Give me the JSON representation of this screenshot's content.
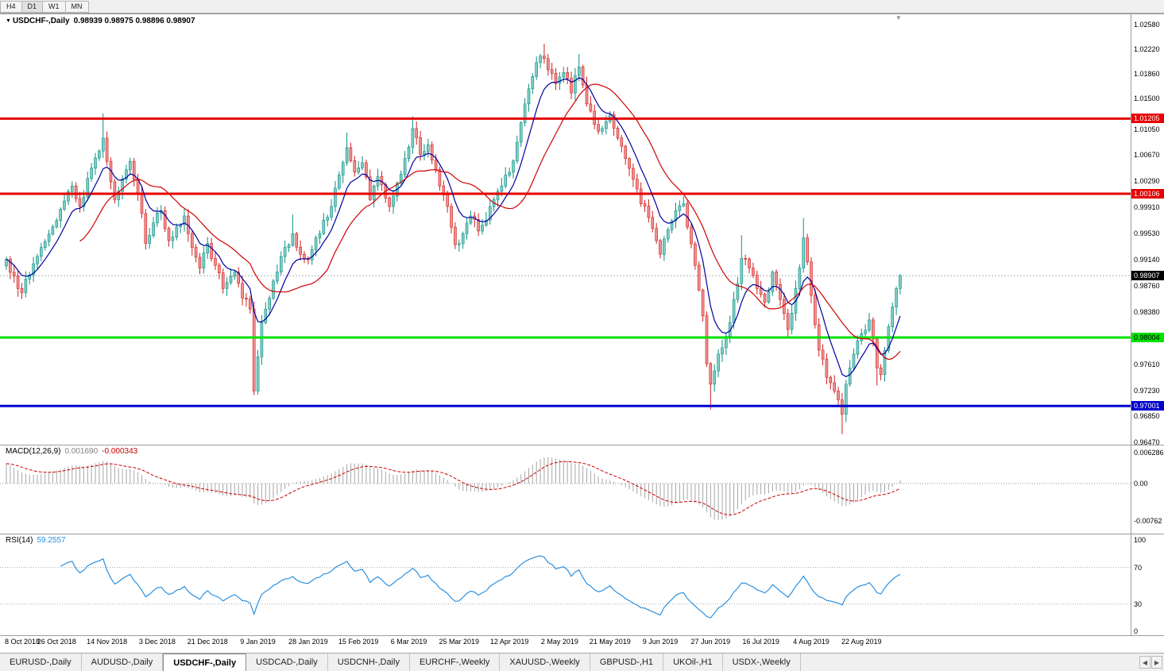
{
  "toolbar": {
    "timeframes": [
      "H4",
      "D1",
      "W1",
      "MN"
    ],
    "active": "D1"
  },
  "chart_header": {
    "collapse_icon": "▼",
    "symbol": "USDCHF-,Daily",
    "ohlc": "0.98939 0.98975 0.98896 0.98907"
  },
  "indicators": {
    "macd": {
      "title": "MACD(12,26,9)",
      "value_main": "0.001690",
      "value_signal": "-0.000343",
      "scale_labels": [
        "0.006286",
        "0.00",
        "-0.00762"
      ]
    },
    "rsi": {
      "title": "RSI(14)",
      "value": "59.2557",
      "scale_labels": [
        "100",
        "70",
        "30",
        "0"
      ]
    }
  },
  "price_axis": {
    "ticks": [
      "1.02580",
      "1.02220",
      "1.01860",
      "1.01500",
      "1.01050",
      "1.00670",
      "1.00290",
      "0.99910",
      "0.99530",
      "0.99140",
      "0.98760",
      "0.98380",
      "0.97610",
      "0.97230",
      "0.96850",
      "0.96470"
    ],
    "current_price": {
      "text": "0.98907",
      "bg": "#000000",
      "fg": "#ffffff"
    }
  },
  "levels": [
    {
      "price": "1.01205",
      "color": "#e60000",
      "badge_fg": "#ffffff"
    },
    {
      "price": "1.00106",
      "color": "#e60000",
      "badge_fg": "#ffffff"
    },
    {
      "price": "0.98004",
      "color": "#00e100",
      "badge_fg": "#000000"
    },
    {
      "price": "0.97001",
      "color": "#0000cd",
      "badge_fg": "#ffffff"
    }
  ],
  "date_axis": [
    "8 Oct 2018",
    "26 Oct 2018",
    "14 Nov 2018",
    "3 Dec 2018",
    "21 Dec 2018",
    "9 Jan 2019",
    "28 Jan 2019",
    "15 Feb 2019",
    "6 Mar 2019",
    "25 Mar 2019",
    "12 Apr 2019",
    "2 May 2019",
    "21 May 2019",
    "9 Jun 2019",
    "27 Jun 2019",
    "16 Jul 2019",
    "4 Aug 2019",
    "22 Aug 2019"
  ],
  "tabs": [
    {
      "label": "EURUSD-,Daily",
      "active": false
    },
    {
      "label": "AUDUSD-,Daily",
      "active": false
    },
    {
      "label": "USDCHF-,Daily",
      "active": true
    },
    {
      "label": "USDCAD-,Daily",
      "active": false
    },
    {
      "label": "USDCNH-,Daily",
      "active": false
    },
    {
      "label": "EURCHF-,Weekly",
      "active": false
    },
    {
      "label": "XAUUSD-,Weekly",
      "active": false
    },
    {
      "label": "GBPUSD-,H1",
      "active": false
    },
    {
      "label": "UKOil-,H1",
      "active": false
    },
    {
      "label": "USDX-,Weekly",
      "active": false
    }
  ],
  "tabbar": {
    "arrows": [
      "◀",
      "▶"
    ]
  },
  "misc": {
    "shift_marker": "▼"
  },
  "chart_data": {
    "type": "candlestick",
    "symbol": "USDCHF",
    "timeframe": "Daily",
    "ohlc_current": {
      "open": "0.98939",
      "high": "0.98975",
      "low": "0.98896",
      "close": "0.98907"
    },
    "candle_count": 232,
    "price_scale": {
      "top": 1.0258,
      "bottom": 0.9647
    },
    "anchors": [
      [
        0,
        0.9915
      ],
      [
        2,
        0.989
      ],
      [
        4,
        0.9866
      ],
      [
        6,
        0.9892
      ],
      [
        9,
        0.9932
      ],
      [
        12,
        0.9962
      ],
      [
        14,
        0.9988
      ],
      [
        17,
        1.0022
      ],
      [
        19,
        0.9992
      ],
      [
        22,
        1.0048
      ],
      [
        25,
        1.0092
      ],
      [
        26,
        1.0058
      ],
      [
        28,
        1.0002
      ],
      [
        30,
        1.0032
      ],
      [
        32,
        1.0058
      ],
      [
        34,
        1.0012
      ],
      [
        36,
        0.9938
      ],
      [
        38,
        0.9968
      ],
      [
        40,
        0.9986
      ],
      [
        42,
        0.9942
      ],
      [
        44,
        0.9962
      ],
      [
        46,
        0.9978
      ],
      [
        48,
        0.9932
      ],
      [
        50,
        0.9902
      ],
      [
        52,
        0.9938
      ],
      [
        54,
        0.9906
      ],
      [
        56,
        0.9872
      ],
      [
        59,
        0.9896
      ],
      [
        61,
        0.9858
      ],
      [
        63,
        0.9842
      ],
      [
        64,
        0.9722
      ],
      [
        65,
        0.9772
      ],
      [
        66,
        0.9822
      ],
      [
        68,
        0.9858
      ],
      [
        70,
        0.9896
      ],
      [
        72,
        0.9932
      ],
      [
        74,
        0.9952
      ],
      [
        76,
        0.9922
      ],
      [
        78,
        0.9914
      ],
      [
        80,
        0.9946
      ],
      [
        82,
        0.9972
      ],
      [
        84,
        0.9992
      ],
      [
        86,
        1.0038
      ],
      [
        88,
        1.0078
      ],
      [
        90,
        1.0042
      ],
      [
        92,
        1.0056
      ],
      [
        94,
        1.0002
      ],
      [
        96,
        1.0036
      ],
      [
        99,
        0.9992
      ],
      [
        101,
        1.0026
      ],
      [
        103,
        1.0062
      ],
      [
        105,
        1.0106
      ],
      [
        107,
        1.0068
      ],
      [
        109,
        1.0082
      ],
      [
        111,
        1.0046
      ],
      [
        112,
        1.0022
      ],
      [
        114,
        0.9992
      ],
      [
        116,
        0.9936
      ],
      [
        118,
        0.9952
      ],
      [
        120,
        0.9978
      ],
      [
        122,
        0.9956
      ],
      [
        124,
        0.9972
      ],
      [
        126,
        1.0002
      ],
      [
        128,
        1.0022
      ],
      [
        130,
        1.0042
      ],
      [
        132,
        1.0086
      ],
      [
        134,
        1.0142
      ],
      [
        136,
        1.0182
      ],
      [
        138,
        1.0212
      ],
      [
        140,
        1.0192
      ],
      [
        142,
        1.0172
      ],
      [
        144,
        1.0188
      ],
      [
        146,
        1.0158
      ],
      [
        148,
        1.0196
      ],
      [
        150,
        1.0142
      ],
      [
        152,
        1.0112
      ],
      [
        154,
        1.0106
      ],
      [
        156,
        1.0126
      ],
      [
        158,
        1.0092
      ],
      [
        160,
        1.0062
      ],
      [
        162,
        1.0032
      ],
      [
        164,
        0.9996
      ],
      [
        166,
        0.9976
      ],
      [
        168,
        0.9942
      ],
      [
        169,
        0.9922
      ],
      [
        171,
        0.9958
      ],
      [
        173,
        0.9986
      ],
      [
        175,
        0.9996
      ],
      [
        176,
        0.9962
      ],
      [
        178,
        0.9906
      ],
      [
        180,
        0.9832
      ],
      [
        181,
        0.9762
      ],
      [
        182,
        0.9732
      ],
      [
        184,
        0.9776
      ],
      [
        186,
        0.9802
      ],
      [
        188,
        0.9856
      ],
      [
        190,
        0.9916
      ],
      [
        192,
        0.9902
      ],
      [
        194,
        0.9872
      ],
      [
        196,
        0.9852
      ],
      [
        198,
        0.9896
      ],
      [
        200,
        0.9856
      ],
      [
        202,
        0.9812
      ],
      [
        203,
        0.9836
      ],
      [
        205,
        0.9902
      ],
      [
        206,
        0.9946
      ],
      [
        208,
        0.9862
      ],
      [
        210,
        0.9782
      ],
      [
        212,
        0.9742
      ],
      [
        214,
        0.9722
      ],
      [
        216,
        0.9688
      ],
      [
        217,
        0.9732
      ],
      [
        219,
        0.9776
      ],
      [
        221,
        0.9806
      ],
      [
        223,
        0.9826
      ],
      [
        225,
        0.9756
      ],
      [
        226,
        0.9746
      ],
      [
        228,
        0.9816
      ],
      [
        230,
        0.9872
      ],
      [
        231,
        0.98907
      ]
    ],
    "wick_overrides": [
      {
        "i": 25,
        "high": 1.0128
      },
      {
        "i": 64,
        "low": 0.9716
      },
      {
        "i": 74,
        "high": 0.998
      },
      {
        "i": 88,
        "high": 1.01
      },
      {
        "i": 105,
        "high": 1.0124
      },
      {
        "i": 139,
        "high": 1.023
      },
      {
        "i": 148,
        "high": 1.0215
      },
      {
        "i": 182,
        "low": 0.9695
      },
      {
        "i": 190,
        "high": 0.995
      },
      {
        "i": 206,
        "high": 0.9975
      },
      {
        "i": 216,
        "low": 0.9659
      },
      {
        "i": 225,
        "low": 0.973
      }
    ],
    "colors": {
      "up": {
        "fill": "#7fccc4",
        "border": "#0d8f85"
      },
      "down": {
        "fill": "#f08f8f",
        "border": "#cf1f1f"
      }
    },
    "ma_fast": {
      "type": "ema",
      "period": 8,
      "color": "#0000a0"
    },
    "ma_slow": {
      "type": "sma",
      "period": 20,
      "color": "#d00000"
    },
    "macd": {
      "fast": 12,
      "slow": 26,
      "signal": 9,
      "hist_color": "#a6a6a6",
      "signal_color": "#cc0000",
      "scale_top": 0.006286,
      "scale_bottom": -0.00762
    },
    "rsi": {
      "period": 14,
      "color": "#2a90e0",
      "levels": [
        70,
        30
      ]
    }
  }
}
